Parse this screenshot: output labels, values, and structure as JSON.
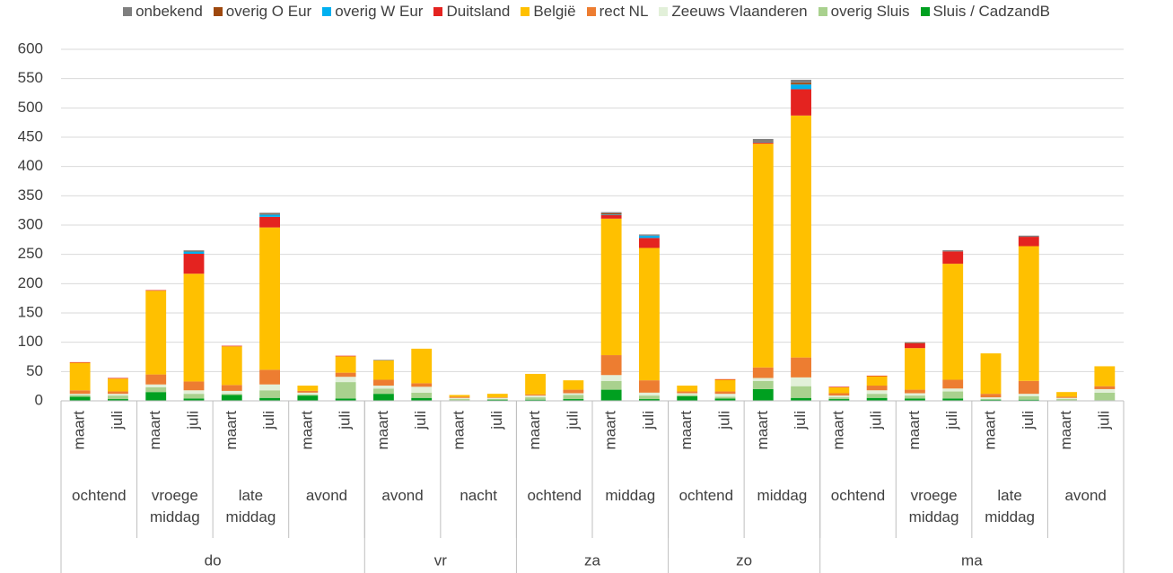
{
  "chart_data": {
    "type": "bar",
    "stacked": true,
    "groups": [
      {
        "name": "do",
        "subgroups": [
          {
            "name": "ochtend",
            "categories": [
              "maart",
              "juli"
            ]
          },
          {
            "name": "vroege middag",
            "categories": [
              "maart",
              "juli"
            ]
          },
          {
            "name": "late middag",
            "categories": [
              "maart",
              "juli"
            ]
          },
          {
            "name": "avond",
            "categories": [
              "maart",
              "juli"
            ]
          }
        ]
      },
      {
        "name": "vr",
        "subgroups": [
          {
            "name": "avond",
            "categories": [
              "maart",
              "juli"
            ]
          },
          {
            "name": "nacht",
            "categories": [
              "maart",
              "juli"
            ]
          }
        ]
      },
      {
        "name": "za",
        "subgroups": [
          {
            "name": "ochtend",
            "categories": [
              "maart",
              "juli"
            ]
          },
          {
            "name": "middag",
            "categories": [
              "maart",
              "juli"
            ]
          }
        ]
      },
      {
        "name": "zo",
        "subgroups": [
          {
            "name": "ochtend",
            "categories": [
              "maart",
              "juli"
            ]
          },
          {
            "name": "middag",
            "categories": [
              "maart",
              "juli"
            ]
          }
        ]
      },
      {
        "name": "ma",
        "subgroups": [
          {
            "name": "ochtend",
            "categories": [
              "maart",
              "juli"
            ]
          },
          {
            "name": "vroege middag",
            "categories": [
              "maart",
              "juli"
            ]
          },
          {
            "name": "late middag",
            "categories": [
              "maart",
              "juli"
            ]
          },
          {
            "name": "avond",
            "categories": [
              "maart",
              "juli"
            ]
          }
        ]
      }
    ],
    "series": [
      {
        "name": "onbekend",
        "color": "#7f7f7f",
        "values": [
          0,
          0,
          0,
          1,
          0,
          2,
          0,
          0,
          1,
          0,
          0,
          0,
          0,
          0,
          2,
          2,
          0,
          0,
          4,
          5,
          0,
          0,
          1,
          2,
          0,
          2,
          0,
          0
        ]
      },
      {
        "name": "overig O Eur",
        "color": "#9e480e",
        "values": [
          0,
          0,
          0,
          1,
          0,
          1,
          0,
          0,
          0,
          0,
          0,
          0,
          0,
          0,
          2,
          0,
          0,
          0,
          1,
          3,
          0,
          0,
          1,
          0,
          0,
          0,
          0,
          0
        ]
      },
      {
        "name": "overig W Eur",
        "color": "#00b0f0",
        "values": [
          0,
          0,
          0,
          4,
          0,
          4,
          0,
          0,
          0,
          0,
          0,
          0,
          0,
          0,
          1,
          4,
          0,
          0,
          1,
          8,
          0,
          0,
          0,
          0,
          0,
          0,
          0,
          0
        ]
      },
      {
        "name": "Duitsland",
        "color": "#e42320",
        "values": [
          1,
          1,
          1,
          34,
          1,
          18,
          0,
          1,
          0,
          0,
          0,
          0,
          0,
          0,
          6,
          17,
          0,
          1,
          2,
          45,
          1,
          1,
          8,
          21,
          0,
          16,
          0,
          0
        ]
      },
      {
        "name": "België",
        "color": "#ffc000",
        "values": [
          47,
          22,
          143,
          184,
          66,
          243,
          9,
          28,
          33,
          59,
          3,
          6,
          35,
          16,
          233,
          226,
          10,
          20,
          382,
          413,
          10,
          16,
          71,
          198,
          69,
          230,
          8,
          34
        ]
      },
      {
        "name": "rect NL",
        "color": "#ed7d31",
        "values": [
          6,
          4,
          17,
          15,
          10,
          25,
          3,
          7,
          10,
          6,
          2,
          1,
          2,
          6,
          34,
          21,
          3,
          4,
          18,
          34,
          4,
          8,
          6,
          15,
          6,
          22,
          2,
          5
        ]
      },
      {
        "name": "Zeeuws Vlaanderen",
        "color": "#e2f0d9",
        "values": [
          2,
          3,
          5,
          6,
          5,
          10,
          3,
          9,
          5,
          10,
          2,
          2,
          3,
          3,
          10,
          5,
          3,
          5,
          5,
          15,
          3,
          6,
          4,
          5,
          3,
          4,
          2,
          6
        ]
      },
      {
        "name": "overig Sluis",
        "color": "#a9d18e",
        "values": [
          3,
          6,
          8,
          8,
          2,
          13,
          2,
          28,
          9,
          9,
          2,
          1,
          4,
          7,
          15,
          6,
          2,
          3,
          14,
          20,
          3,
          7,
          5,
          12,
          1,
          6,
          2,
          13
        ]
      },
      {
        "name": "Sluis / CadzandB",
        "color": "#00a020",
        "values": [
          7,
          3,
          15,
          4,
          10,
          5,
          9,
          4,
          12,
          5,
          1,
          2,
          2,
          3,
          19,
          3,
          8,
          4,
          20,
          5,
          3,
          5,
          4,
          4,
          2,
          2,
          1,
          1
        ]
      }
    ],
    "ylim": [
      0,
      600
    ],
    "yticks": [
      0,
      50,
      100,
      150,
      200,
      250,
      300,
      350,
      400,
      450,
      500,
      550,
      600
    ],
    "grid": true,
    "legend": "top"
  }
}
